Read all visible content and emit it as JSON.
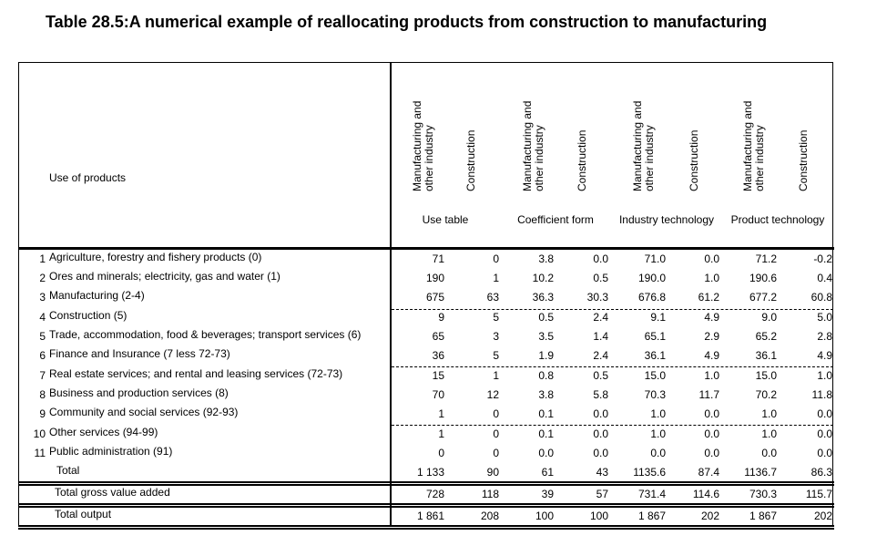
{
  "title": "Table 28.5:A numerical example of reallocating products from construction to manufacturing",
  "header": {
    "row_label": "Use of products",
    "column_headers": [
      "Manufacturing and other industry",
      "Construction",
      "Manufacturing and other industry",
      "Construction",
      "Manufacturing and other industry",
      "Construction",
      "Manufacturing and other industry",
      "Construction"
    ],
    "column_header_lines": [
      [
        "Manufacturing and",
        "other industry"
      ],
      [
        "Construction"
      ],
      [
        "Manufacturing and",
        "other industry"
      ],
      [
        "Construction"
      ],
      [
        "Manufacturing and",
        "other industry"
      ],
      [
        "Construction"
      ],
      [
        "Manufacturing and",
        "other industry"
      ],
      [
        "Construction"
      ]
    ],
    "groups": [
      "Use table",
      "Coefficient form",
      "Industry technology",
      "Product technology"
    ]
  },
  "rows": [
    {
      "num": "1",
      "label": "Agriculture, forestry and fishery products (0)",
      "values": [
        "71",
        "0",
        "3.8",
        "0.0",
        "71.0",
        "0.0",
        "71.2",
        "-0.2"
      ]
    },
    {
      "num": "2",
      "label": "Ores and minerals; electricity, gas and water (1)",
      "values": [
        "190",
        "1",
        "10.2",
        "0.5",
        "190.0",
        "1.0",
        "190.6",
        "0.4"
      ]
    },
    {
      "num": "3",
      "label": "Manufacturing (2-4)",
      "values": [
        "675",
        "63",
        "36.3",
        "30.3",
        "676.8",
        "61.2",
        "677.2",
        "60.8"
      ]
    },
    {
      "num": "4",
      "label": "Construction (5)",
      "values": [
        "9",
        "5",
        "0.5",
        "2.4",
        "9.1",
        "4.9",
        "9.0",
        "5.0"
      ]
    },
    {
      "num": "5",
      "label": "Trade, accommodation, food & beverages; transport services  (6)",
      "values": [
        "65",
        "3",
        "3.5",
        "1.4",
        "65.1",
        "2.9",
        "65.2",
        "2.8"
      ]
    },
    {
      "num": "6",
      "label": "Finance and Insurance (7 less 72-73)",
      "values": [
        "36",
        "5",
        "1.9",
        "2.4",
        "36.1",
        "4.9",
        "36.1",
        "4.9"
      ]
    },
    {
      "num": "7",
      "label": "Real estate services; and rental and leasing services (72-73)",
      "values": [
        "15",
        "1",
        "0.8",
        "0.5",
        "15.0",
        "1.0",
        "15.0",
        "1.0"
      ]
    },
    {
      "num": "8",
      "label": "Business and production services (8)",
      "values": [
        "70",
        "12",
        "3.8",
        "5.8",
        "70.3",
        "11.7",
        "70.2",
        "11.8"
      ]
    },
    {
      "num": "9",
      "label": "Community and social services (92-93)",
      "values": [
        "1",
        "0",
        "0.1",
        "0.0",
        "1.0",
        "0.0",
        "1.0",
        "0.0"
      ]
    },
    {
      "num": "10",
      "label": "Other services (94-99)",
      "values": [
        "1",
        "0",
        "0.1",
        "0.0",
        "1.0",
        "0.0",
        "1.0",
        "0.0"
      ]
    },
    {
      "num": "11",
      "label": "Public administration (91)",
      "values": [
        "0",
        "0",
        "0.0",
        "0.0",
        "0.0",
        "0.0",
        "0.0",
        "0.0"
      ]
    },
    {
      "num": "",
      "label": "Total",
      "values": [
        "1 133",
        "90",
        "61",
        "43",
        "1135.6",
        "87.4",
        "1136.7",
        "86.3"
      ]
    }
  ],
  "summary_rows": [
    {
      "label": "Total gross value added",
      "values": [
        "728",
        "118",
        "39",
        "57",
        "731.4",
        "114.6",
        "730.3",
        "115.7"
      ]
    },
    {
      "label": "Total output",
      "values": [
        "1 861",
        "208",
        "100",
        "100",
        "1 867",
        "202",
        "1 867",
        "202"
      ]
    }
  ]
}
